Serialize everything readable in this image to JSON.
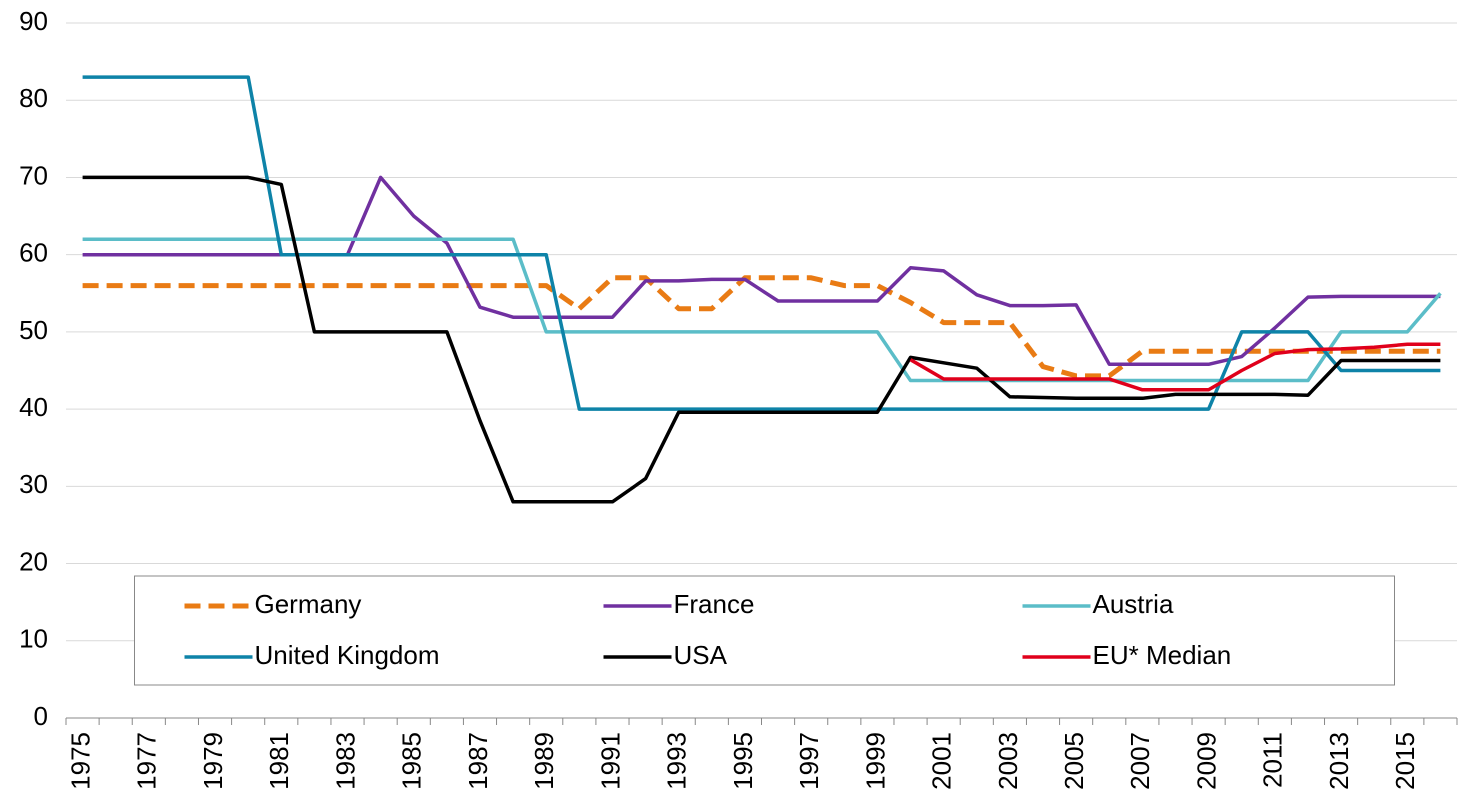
{
  "chart_data": {
    "type": "line",
    "categories": [
      "1975",
      null,
      "1977",
      null,
      "1979",
      null,
      "1981",
      null,
      "1983",
      null,
      "1985",
      null,
      "1987",
      null,
      "1989",
      null,
      "1991",
      null,
      "1993",
      null,
      "1995",
      null,
      "1997",
      null,
      "1999",
      null,
      "2001",
      null,
      "2003",
      null,
      "2005",
      null,
      "2007",
      null,
      "2009",
      null,
      "2011",
      null,
      "2013",
      null,
      "2015",
      null
    ],
    "series": [
      {
        "name": "Germany",
        "color": "#e97b14",
        "dashed": true,
        "values": [
          56,
          56,
          56,
          56,
          56,
          56,
          56,
          56,
          56,
          56,
          56,
          56,
          56,
          56,
          56,
          53,
          57,
          57,
          53,
          53,
          57,
          57,
          57,
          56,
          56,
          53.8,
          51.2,
          51.2,
          51.2,
          45.5,
          44.3,
          44.3,
          47.5,
          47.5,
          47.5,
          47.5,
          47.5,
          47.5,
          47.5,
          47.5,
          47.5,
          47.5
        ]
      },
      {
        "name": "France",
        "color": "#7030a0",
        "values": [
          60,
          60,
          60,
          60,
          60,
          60,
          60,
          60,
          60,
          70,
          65,
          61.5,
          53.2,
          51.9,
          51.9,
          51.9,
          51.9,
          56.6,
          56.6,
          56.8,
          56.8,
          54,
          54,
          54,
          54,
          58.3,
          57.9,
          54.8,
          53.4,
          53.4,
          53.5,
          45.8,
          45.8,
          45.8,
          45.8,
          46.8,
          50.5,
          54.5,
          54.6,
          54.6,
          54.6,
          54.6
        ]
      },
      {
        "name": "Austria",
        "color": "#5bbdc8",
        "values": [
          62,
          62,
          62,
          62,
          62,
          62,
          62,
          62,
          62,
          62,
          62,
          62,
          62,
          62,
          50,
          50,
          50,
          50,
          50,
          50,
          50,
          50,
          50,
          50,
          50,
          43.7,
          43.7,
          43.7,
          43.7,
          43.7,
          43.7,
          43.7,
          43.7,
          43.7,
          43.7,
          43.7,
          43.7,
          43.7,
          50,
          50,
          50,
          55
        ]
      },
      {
        "name": "United Kingdom",
        "color": "#0e83a8",
        "values": [
          83,
          83,
          83,
          83,
          83,
          83,
          60,
          60,
          60,
          60,
          60,
          60,
          60,
          60,
          60,
          40,
          40,
          40,
          40,
          40,
          40,
          40,
          40,
          40,
          40,
          40,
          40,
          40,
          40,
          40,
          40,
          40,
          40,
          40,
          40,
          50,
          50,
          50,
          45,
          45,
          45,
          45
        ]
      },
      {
        "name": "USA",
        "color": "#000000",
        "values": [
          70,
          70,
          70,
          70,
          70,
          70,
          69.1,
          50,
          50,
          50,
          50,
          50,
          38.5,
          28,
          28,
          28,
          28,
          31,
          39.6,
          39.6,
          39.6,
          39.6,
          39.6,
          39.6,
          39.6,
          46.7,
          46,
          45.3,
          41.6,
          41.5,
          41.4,
          41.4,
          41.4,
          41.9,
          41.9,
          41.9,
          41.9,
          41.8,
          46.3,
          46.3,
          46.3,
          46.3
        ]
      },
      {
        "name": "EU* Median",
        "color": "#e0001b",
        "values": [
          null,
          null,
          null,
          null,
          null,
          null,
          null,
          null,
          null,
          null,
          null,
          null,
          null,
          null,
          null,
          null,
          null,
          null,
          null,
          null,
          null,
          null,
          null,
          null,
          null,
          46.4,
          43.9,
          43.9,
          43.9,
          43.9,
          43.9,
          43.9,
          42.5,
          42.5,
          42.5,
          45,
          47.2,
          47.7,
          47.8,
          48,
          48.4,
          48.4
        ]
      }
    ],
    "ylim": [
      0,
      90
    ],
    "yticks": [
      0,
      10,
      20,
      30,
      40,
      50,
      60,
      70,
      80,
      90
    ],
    "grid": true,
    "legend": "lower center"
  }
}
